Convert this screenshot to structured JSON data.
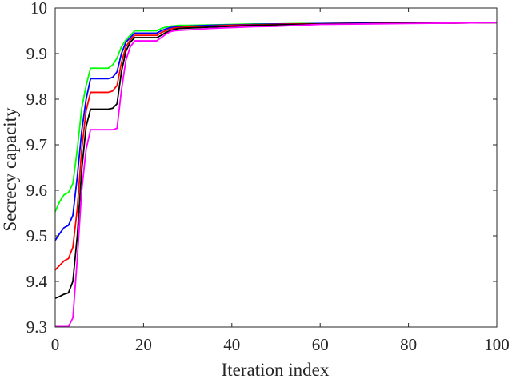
{
  "chart_data": {
    "type": "line",
    "xlabel": "Iteration index",
    "ylabel": "Secrecy capacity",
    "xlim": [
      0,
      100
    ],
    "ylim": [
      9.3,
      10
    ],
    "xticks": [
      0,
      20,
      40,
      60,
      80,
      100
    ],
    "yticks": [
      9.3,
      9.4,
      9.5,
      9.6,
      9.7,
      9.8,
      9.9,
      10
    ],
    "grid": false,
    "legend": "none",
    "series": [
      {
        "color": "#00ff00",
        "x": [
          0,
          1,
          2,
          3,
          4,
          5,
          6,
          7,
          8,
          9,
          10,
          11,
          12,
          13,
          14,
          15,
          16,
          17,
          18,
          19,
          20,
          21,
          22,
          23,
          24,
          25,
          26,
          27,
          28,
          30,
          35,
          40,
          45,
          50,
          55,
          60,
          70,
          80,
          90,
          100
        ],
        "y": [
          9.553,
          9.575,
          9.59,
          9.595,
          9.615,
          9.69,
          9.78,
          9.83,
          9.868,
          9.868,
          9.868,
          9.868,
          9.868,
          9.875,
          9.89,
          9.915,
          9.93,
          9.94,
          9.95,
          9.95,
          9.95,
          9.95,
          9.95,
          9.95,
          9.955,
          9.958,
          9.96,
          9.961,
          9.962,
          9.962,
          9.963,
          9.964,
          9.965,
          9.965,
          9.966,
          9.966,
          9.967,
          9.967,
          9.968,
          9.968
        ]
      },
      {
        "color": "#0000ff",
        "x": [
          0,
          1,
          2,
          3,
          4,
          5,
          6,
          7,
          8,
          9,
          10,
          11,
          12,
          13,
          14,
          15,
          16,
          17,
          18,
          19,
          20,
          21,
          22,
          23,
          24,
          25,
          26,
          27,
          28,
          30,
          35,
          40,
          45,
          50,
          55,
          60,
          70,
          80,
          90,
          100
        ],
        "y": [
          9.49,
          9.505,
          9.518,
          9.523,
          9.545,
          9.63,
          9.73,
          9.8,
          9.845,
          9.845,
          9.845,
          9.845,
          9.845,
          9.848,
          9.86,
          9.9,
          9.925,
          9.935,
          9.945,
          9.945,
          9.945,
          9.945,
          9.945,
          9.945,
          9.95,
          9.954,
          9.957,
          9.958,
          9.959,
          9.96,
          9.962,
          9.963,
          9.964,
          9.965,
          9.965,
          9.966,
          9.967,
          9.967,
          9.968,
          9.968
        ]
      },
      {
        "color": "#ff0000",
        "x": [
          0,
          1,
          2,
          3,
          4,
          5,
          6,
          7,
          8,
          9,
          10,
          11,
          12,
          13,
          14,
          15,
          16,
          17,
          18,
          19,
          20,
          21,
          22,
          23,
          24,
          25,
          26,
          27,
          28,
          30,
          35,
          40,
          45,
          50,
          55,
          60,
          70,
          80,
          90,
          100
        ],
        "y": [
          9.425,
          9.435,
          9.445,
          9.45,
          9.475,
          9.56,
          9.69,
          9.775,
          9.815,
          9.815,
          9.815,
          9.815,
          9.815,
          9.818,
          9.83,
          9.88,
          9.915,
          9.93,
          9.94,
          9.94,
          9.94,
          9.94,
          9.94,
          9.94,
          9.946,
          9.95,
          9.954,
          9.956,
          9.957,
          9.958,
          9.96,
          9.962,
          9.963,
          9.964,
          9.965,
          9.965,
          9.966,
          9.967,
          9.967,
          9.968
        ]
      },
      {
        "color": "#000000",
        "x": [
          0,
          1,
          2,
          3,
          4,
          5,
          6,
          7,
          8,
          9,
          10,
          11,
          12,
          13,
          14,
          15,
          16,
          17,
          18,
          19,
          20,
          21,
          22,
          23,
          24,
          25,
          26,
          27,
          28,
          30,
          35,
          40,
          45,
          50,
          55,
          60,
          70,
          80,
          90,
          100
        ],
        "y": [
          9.363,
          9.367,
          9.372,
          9.375,
          9.4,
          9.5,
          9.645,
          9.74,
          9.778,
          9.778,
          9.778,
          9.778,
          9.778,
          9.78,
          9.79,
          9.86,
          9.905,
          9.925,
          9.935,
          9.935,
          9.935,
          9.935,
          9.935,
          9.935,
          9.94,
          9.946,
          9.95,
          9.953,
          9.955,
          9.956,
          9.958,
          9.96,
          9.962,
          9.963,
          9.964,
          9.965,
          9.966,
          9.967,
          9.967,
          9.968
        ]
      },
      {
        "color": "#ff00ff",
        "x": [
          0,
          1,
          2,
          3,
          4,
          5,
          6,
          7,
          8,
          9,
          10,
          11,
          12,
          13,
          14,
          15,
          16,
          17,
          18,
          19,
          20,
          21,
          22,
          23,
          24,
          25,
          26,
          27,
          28,
          30,
          35,
          40,
          45,
          50,
          55,
          60,
          70,
          80,
          90,
          100
        ],
        "y": [
          9.301,
          9.301,
          9.301,
          9.301,
          9.32,
          9.45,
          9.6,
          9.69,
          9.733,
          9.733,
          9.733,
          9.733,
          9.733,
          9.733,
          9.736,
          9.82,
          9.885,
          9.915,
          9.928,
          9.928,
          9.928,
          9.928,
          9.928,
          9.928,
          9.935,
          9.942,
          9.948,
          9.95,
          9.951,
          9.952,
          9.955,
          9.957,
          9.959,
          9.96,
          9.962,
          9.964,
          9.965,
          9.966,
          9.967,
          9.968
        ]
      }
    ]
  }
}
